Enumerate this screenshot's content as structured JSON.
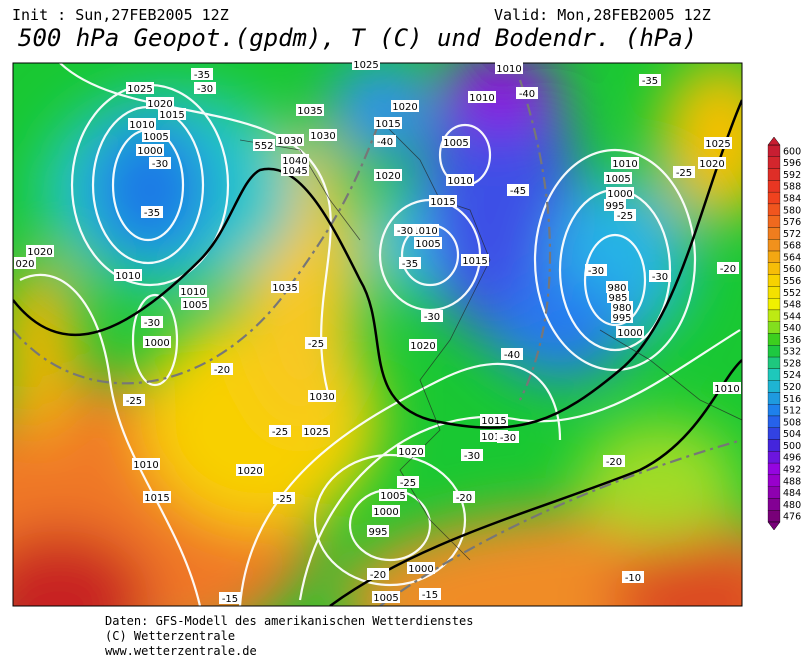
{
  "header": {
    "init": "Init : Sun,27FEB2005 12Z",
    "valid": "Valid: Mon,28FEB2005 12Z",
    "title": "500 hPa Geopot.(gpdm), T (C) und Bodendr. (hPa)"
  },
  "contour_labels": [
    "1025",
    "1020",
    "1015",
    "1010",
    "1005",
    "1000",
    "1035",
    "1030",
    "1030",
    "552",
    "1040",
    "1045",
    "1020",
    "1015",
    "1005",
    "1010",
    "1015",
    "1020",
    "1010",
    "1005",
    "1015",
    "1035",
    "1020",
    "1030",
    "1025",
    "1015",
    "1010",
    "1020",
    "1010",
    "1020",
    "1015",
    "1005",
    "1000",
    "995",
    "1000",
    "1005",
    "1010",
    "1005",
    "1000",
    "995",
    "980",
    "985",
    "980",
    "995",
    "1000",
    "1025",
    "1020",
    "1010",
    "1010",
    "1010",
    "1005",
    "1000",
    "1020",
    "020",
    "1010",
    "1010",
    "1025"
  ],
  "temperature_labels": [
    "-35",
    "-30",
    "-35",
    "-30",
    "-30",
    "-25",
    "-20",
    "-25",
    "-25",
    "-25",
    "-35",
    "-30",
    "-40",
    "-45",
    "-40",
    "-30",
    "-25",
    "-30",
    "-20",
    "-20",
    "-25",
    "-30",
    "-30",
    "-25",
    "-20",
    "-35",
    "-40",
    "-30",
    "-15",
    "-15",
    "-10",
    "-20"
  ],
  "colorbar": {
    "ticks": [
      600,
      596,
      592,
      588,
      584,
      580,
      576,
      572,
      568,
      564,
      560,
      556,
      552,
      548,
      544,
      540,
      536,
      532,
      528,
      524,
      520,
      516,
      512,
      508,
      504,
      500,
      496,
      492,
      488,
      484,
      480,
      476
    ]
  },
  "footer": [
    "Daten: GFS-Modell des amerikanischen Wetterdienstes",
    "(C) Wetterzentrale",
    "www.wetterzentrale.de"
  ]
}
